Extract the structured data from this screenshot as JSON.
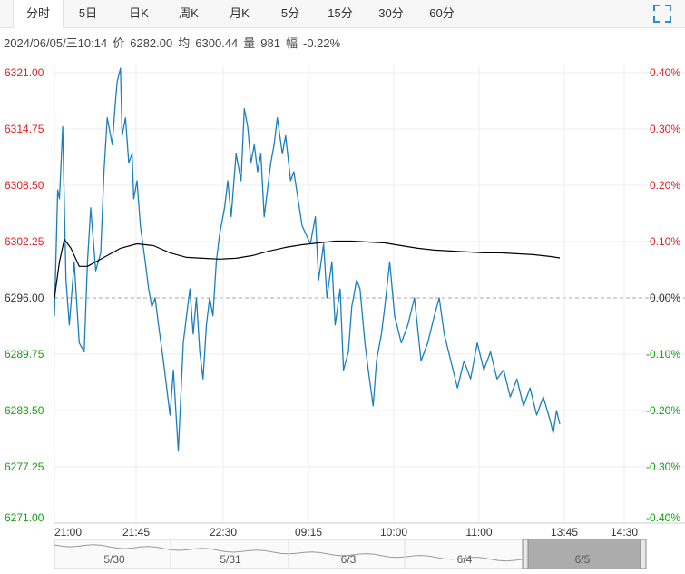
{
  "tabs": [
    {
      "label": "分时",
      "active": true
    },
    {
      "label": "5日",
      "active": false
    },
    {
      "label": "日K",
      "active": false
    },
    {
      "label": "周K",
      "active": false
    },
    {
      "label": "月K",
      "active": false
    },
    {
      "label": "5分",
      "active": false
    },
    {
      "label": "15分",
      "active": false
    },
    {
      "label": "30分",
      "active": false
    },
    {
      "label": "60分",
      "active": false
    }
  ],
  "fullscreen_icon": "expand-corners-icon",
  "info": {
    "datetime": "2024/06/05/三10:14",
    "price_label": "价",
    "price": "6282.00",
    "avg_label": "均",
    "avg": "6300.44",
    "volume_label": "量",
    "volume": "981",
    "change_label": "幅",
    "change": "-0.22%"
  },
  "colors": {
    "price_line": "#1a7fbf",
    "avg_line": "#000000",
    "up": "#e02020",
    "down": "#13a013",
    "neutral": "#333333",
    "grid": "#ececec",
    "baseline": "#aaaaaa"
  },
  "chart_data": {
    "type": "line",
    "title": "",
    "prev_close": 6296.0,
    "ylim": [
      6271.0,
      6321.0
    ],
    "y_ticks": [
      "6321.00",
      "6314.75",
      "6308.50",
      "6302.25",
      "6296.00",
      "6289.75",
      "6283.50",
      "6277.25",
      "6271.00"
    ],
    "pct_ticks": [
      "0.40%",
      "0.30%",
      "0.20%",
      "0.10%",
      "0.00%",
      "-0.10%",
      "-0.20%",
      "-0.30%",
      "-0.40%"
    ],
    "x_ticks": [
      "21:00",
      "21:45",
      "22:30",
      "09:15",
      "10:00",
      "11:00",
      "13:45",
      "14:30"
    ],
    "session_minutes": 345,
    "grid": true,
    "series": [
      {
        "key": "price",
        "minute": [
          0,
          2,
          3,
          5,
          7,
          9,
          12,
          15,
          18,
          20,
          22,
          25,
          28,
          30,
          32,
          35,
          37,
          38,
          40,
          41,
          43,
          45,
          47,
          48,
          50,
          52,
          55,
          57,
          59,
          61,
          63,
          66,
          70,
          72,
          75,
          78,
          80,
          82,
          84,
          86,
          88,
          90,
          92,
          94,
          96,
          98,
          100,
          103,
          105,
          107,
          110,
          113,
          115,
          117,
          119,
          121,
          123,
          125,
          127,
          129,
          131,
          133,
          135,
          138,
          140,
          143,
          145,
          150,
          155,
          158,
          160,
          163,
          165,
          168,
          170,
          173,
          175,
          178,
          180,
          183,
          185,
          188,
          190,
          193,
          195,
          198,
          200,
          203,
          206,
          210,
          214,
          218,
          222,
          226,
          230,
          233,
          236,
          240,
          244,
          248,
          252,
          256,
          260,
          264,
          268,
          272,
          276,
          280,
          284,
          288,
          292,
          296,
          300,
          302,
          304,
          306
        ],
        "values": [
          6294.0,
          6308.0,
          6307.0,
          6315.0,
          6298.0,
          6293.0,
          6300.0,
          6291.0,
          6290.0,
          6300.0,
          6306.0,
          6299.0,
          6301.0,
          6310.0,
          6316.0,
          6313.0,
          6318.0,
          6320.0,
          6321.5,
          6314.0,
          6316.0,
          6311.0,
          6312.0,
          6307.0,
          6309.0,
          6304.0,
          6300.0,
          6297.0,
          6295.0,
          6296.0,
          6293.0,
          6289.0,
          6283.0,
          6288.0,
          6279.0,
          6291.0,
          6294.0,
          6297.0,
          6292.0,
          6296.0,
          6290.0,
          6287.0,
          6293.0,
          6296.0,
          6294.0,
          6300.0,
          6303.0,
          6306.0,
          6309.0,
          6305.0,
          6312.0,
          6309.0,
          6317.0,
          6315.0,
          6311.0,
          6313.0,
          6310.0,
          6312.0,
          6305.0,
          6308.0,
          6311.0,
          6313.0,
          6316.0,
          6312.0,
          6314.0,
          6309.0,
          6310.0,
          6304.0,
          6302.0,
          6305.0,
          6298.0,
          6302.0,
          6296.0,
          6300.0,
          6293.0,
          6297.0,
          6288.0,
          6290.0,
          6295.0,
          6298.0,
          6297.0,
          6291.0,
          6288.0,
          6284.0,
          6289.0,
          6292.0,
          6295.0,
          6300.0,
          6294.0,
          6291.0,
          6293.0,
          6296.0,
          6289.0,
          6291.0,
          6294.0,
          6296.0,
          6292.0,
          6289.0,
          6286.0,
          6289.0,
          6287.0,
          6291.0,
          6288.0,
          6290.0,
          6287.0,
          6288.0,
          6285.0,
          6287.0,
          6284.0,
          6286.0,
          6283.0,
          6285.0,
          6282.5,
          6281.0,
          6283.5,
          6282.0
        ]
      },
      {
        "key": "average",
        "minute": [
          0,
          3,
          6,
          10,
          15,
          20,
          30,
          40,
          50,
          60,
          70,
          80,
          90,
          100,
          110,
          120,
          130,
          140,
          150,
          160,
          170,
          180,
          190,
          200,
          210,
          220,
          230,
          240,
          250,
          260,
          270,
          280,
          290,
          300,
          306
        ],
        "values": [
          6296.0,
          6300.0,
          6302.5,
          6301.5,
          6299.5,
          6299.5,
          6300.5,
          6301.5,
          6302.0,
          6301.8,
          6301.0,
          6300.5,
          6300.4,
          6300.3,
          6300.4,
          6300.7,
          6301.2,
          6301.6,
          6301.9,
          6302.1,
          6302.3,
          6302.3,
          6302.2,
          6302.1,
          6301.8,
          6301.5,
          6301.3,
          6301.2,
          6301.1,
          6301.0,
          6301.0,
          6300.9,
          6300.8,
          6300.6,
          6300.44
        ]
      }
    ]
  },
  "navigator": {
    "labels": [
      "5/30",
      "5/31",
      "6/3",
      "6/4",
      "6/5"
    ]
  }
}
